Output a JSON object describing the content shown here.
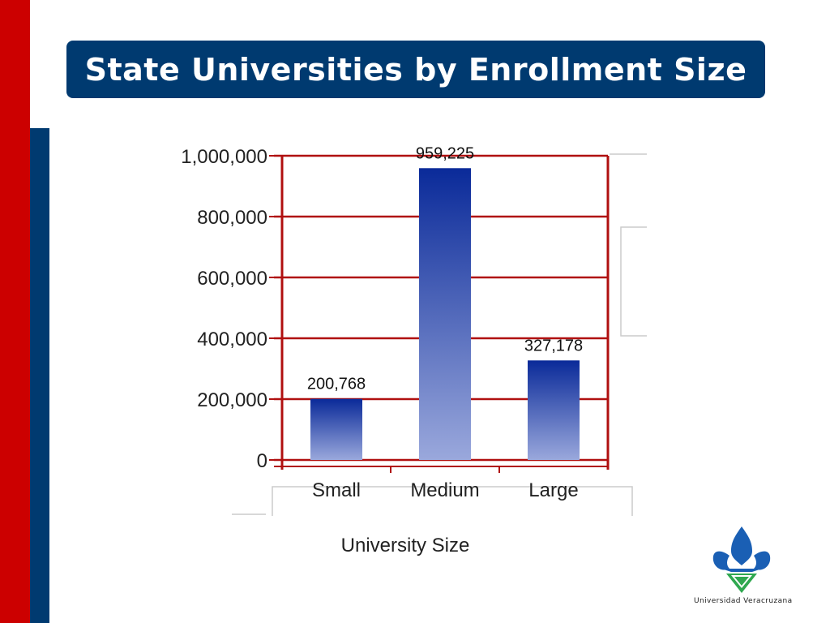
{
  "slide": {
    "title": "State Universities by Enrollment Size",
    "logo_text": "Universidad Veracruzana"
  },
  "colors": {
    "left_band_red": "#cc0000",
    "left_band_blue": "#003a70",
    "title_bg": "#003a70",
    "title_text": "#ffffff",
    "gridline": "#b01010",
    "bar_top": "#0a2a99",
    "bar_bottom": "#9aa8dc",
    "logo_blue": "#1a5fb4",
    "logo_green": "#2fa84f"
  },
  "chart_data": {
    "type": "bar",
    "title": "",
    "xlabel": "University Size",
    "ylabel": "",
    "categories": [
      "Small",
      "Medium",
      "Large"
    ],
    "series": [
      {
        "values": [
          200768,
          959225,
          327178
        ],
        "data_labels": [
          "200,768",
          "959,225",
          "327,178"
        ]
      }
    ],
    "ylim": [
      0,
      1000000
    ],
    "yticks": [
      0,
      200000,
      400000,
      600000,
      800000,
      1000000
    ],
    "ytick_labels": [
      "0",
      "200,000",
      "400,000",
      "600,000",
      "800,000",
      "1,000,000"
    ],
    "grid": true,
    "legend": "none"
  }
}
